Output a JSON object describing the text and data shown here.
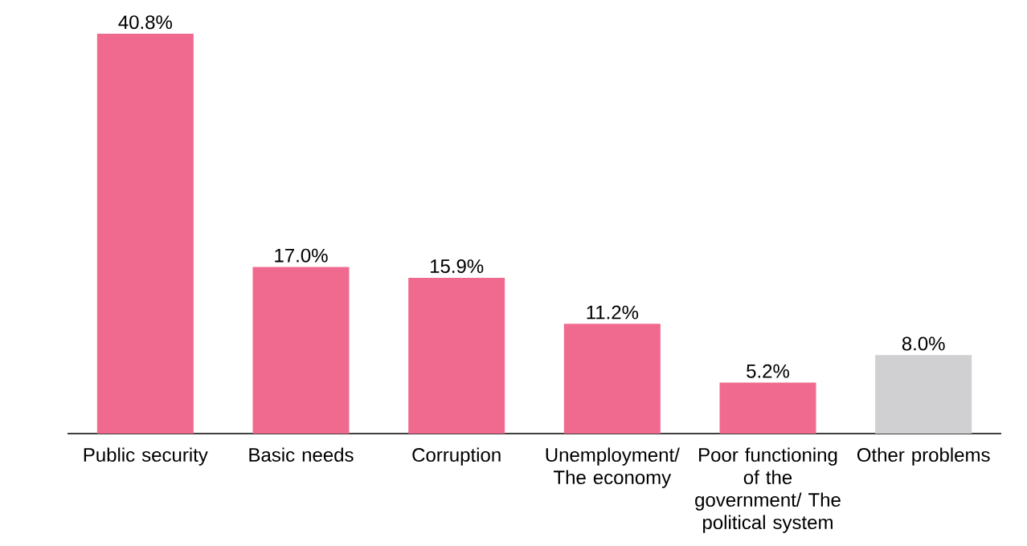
{
  "chart_data": {
    "type": "bar",
    "categories": [
      "Public security",
      "Basic needs",
      "Corruption",
      "Unemployment/ The economy",
      "Poor functioning of the government/ The political system",
      "Other problems"
    ],
    "values": [
      40.8,
      17.0,
      15.9,
      11.2,
      5.2,
      8.0
    ],
    "value_labels": [
      "40.8%",
      "17.0%",
      "15.9%",
      "11.2%",
      "5.2%",
      "8.0%"
    ],
    "colors": [
      "#ef6a8e",
      "#ef6a8e",
      "#ef6a8e",
      "#ef6a8e",
      "#ef6a8e",
      "#d0d0d2"
    ]
  }
}
